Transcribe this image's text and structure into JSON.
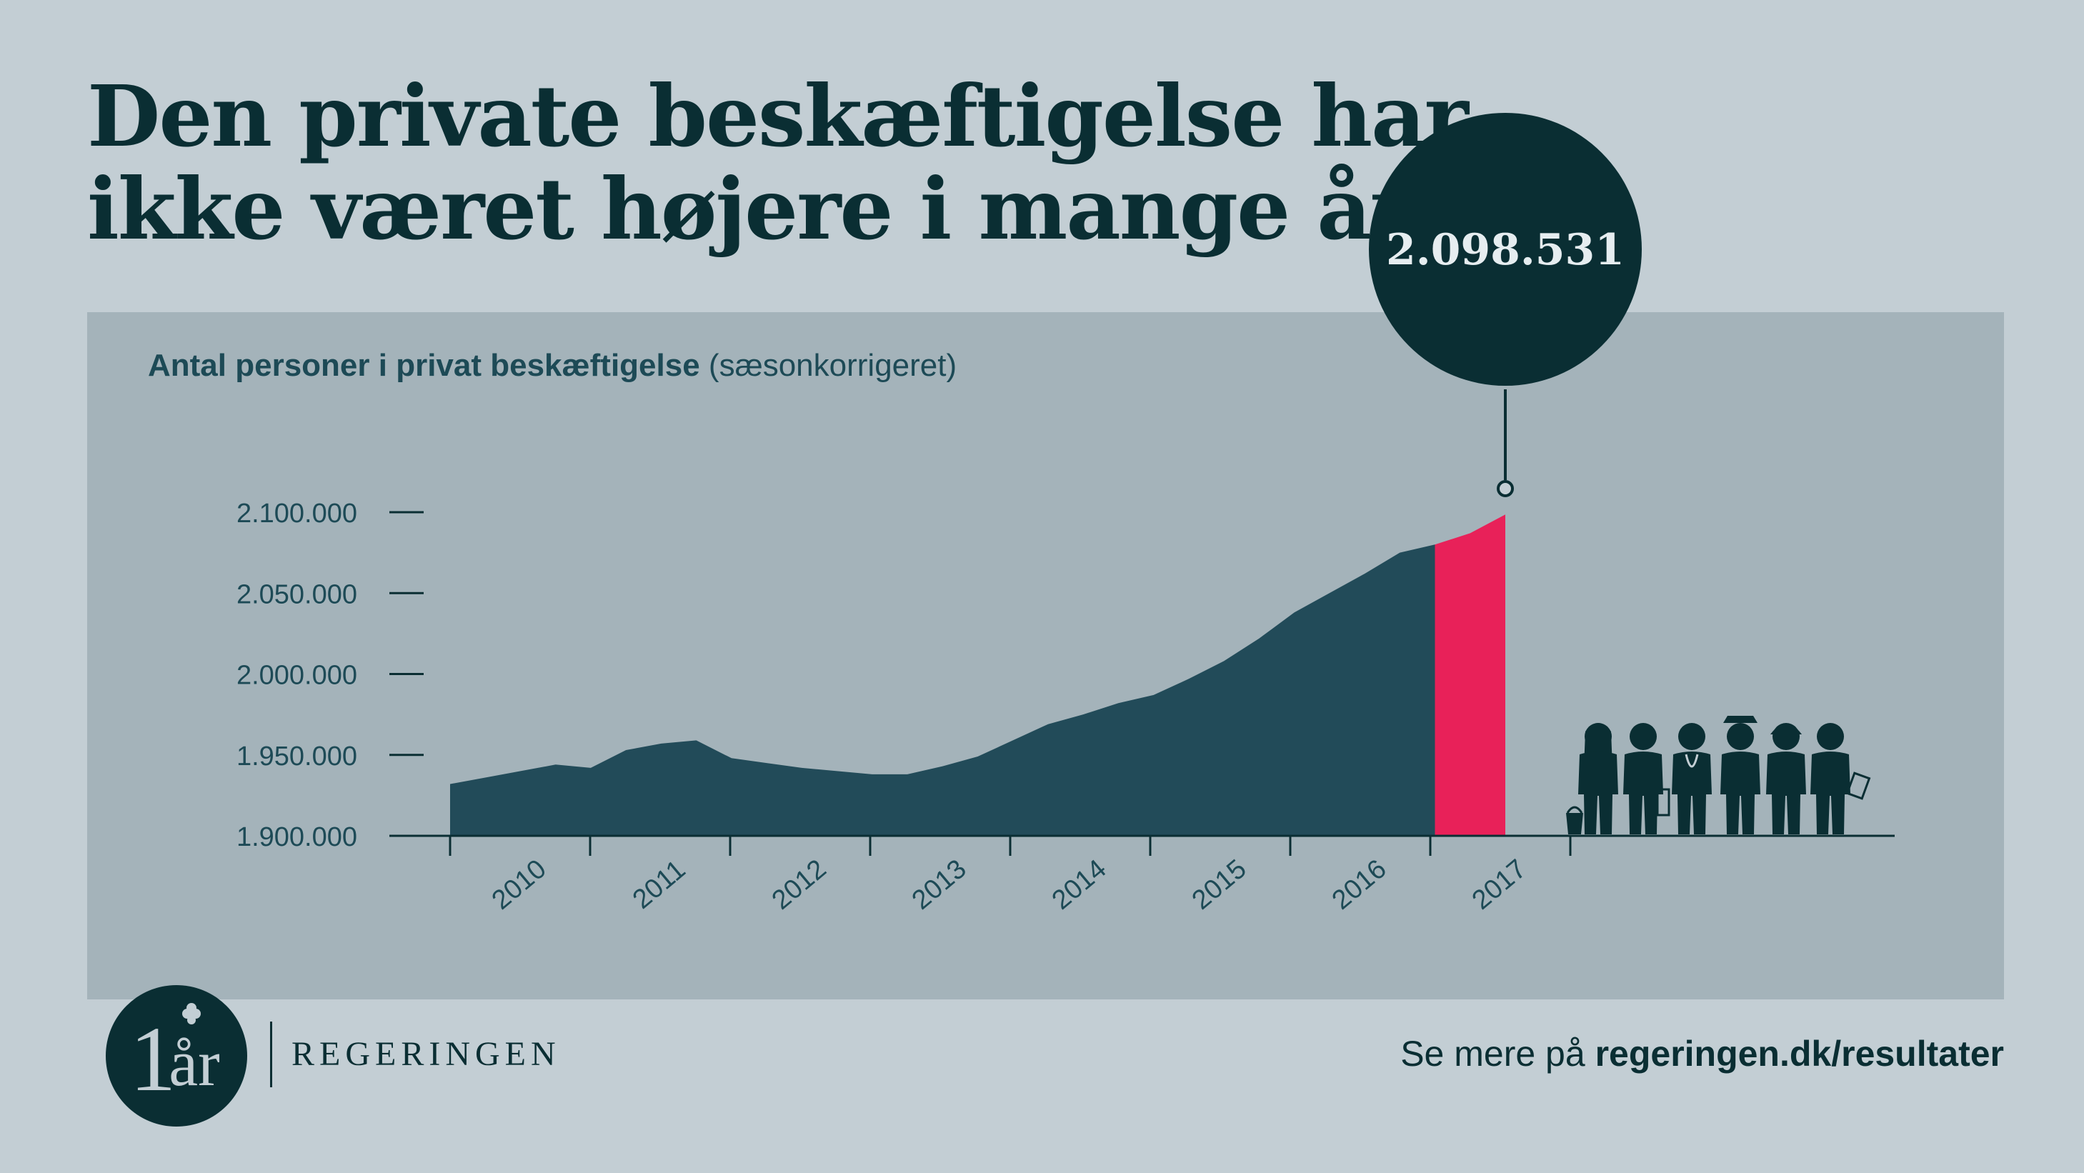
{
  "headline": {
    "line1": "Den private beskæftigelse har",
    "line2": "ikke været højere i mange år"
  },
  "chart_data": {
    "type": "area",
    "title": "Antal personer i privat beskæftigelse",
    "subtitle": "(sæsonkorrigeret)",
    "ylim": [
      1900000,
      2100000
    ],
    "y_ticks": [
      1900000,
      1950000,
      2000000,
      2050000,
      2100000
    ],
    "y_tick_labels": [
      "1.900.000",
      "1.950.000",
      "2.000.000",
      "2.050.000",
      "2.100.000"
    ],
    "x_range": [
      2009.5,
      2017
    ],
    "x_tick_labels": [
      "2010",
      "2011",
      "2012",
      "2013",
      "2014",
      "2015",
      "2016",
      "2017"
    ],
    "grid": false,
    "colors": {
      "history": "#224b59",
      "highlight": "#e82159",
      "axis": "#0a2e33"
    },
    "x": [
      2009.5,
      2009.75,
      2010.0,
      2010.25,
      2010.5,
      2010.75,
      2011.0,
      2011.25,
      2011.5,
      2011.75,
      2012.0,
      2012.25,
      2012.5,
      2012.75,
      2013.0,
      2013.25,
      2013.5,
      2013.75,
      2014.0,
      2014.25,
      2014.5,
      2014.75,
      2015.0,
      2015.25,
      2015.5,
      2015.75,
      2016.0,
      2016.25,
      2016.5,
      2016.75,
      2017.0
    ],
    "values": [
      1932000,
      1936000,
      1940000,
      1944000,
      1942000,
      1953000,
      1957000,
      1959000,
      1948000,
      1945000,
      1942000,
      1940000,
      1938000,
      1938000,
      1943000,
      1949000,
      1959000,
      1969000,
      1975000,
      1982000,
      1987000,
      1997000,
      2008000,
      2022000,
      2038000,
      2050000,
      2062000,
      2075000,
      2080000,
      2087000,
      2098531
    ],
    "highlight_from_x": 2016.5,
    "callout": {
      "x": 2017.0,
      "value": 2098531,
      "label": "2.098.531"
    }
  },
  "illustration": {
    "icon": "workers-silhouettes-icon"
  },
  "footer": {
    "logo_number": "1",
    "logo_text": "år",
    "brand": "REGERINGEN",
    "link_prefix": "Se mere på ",
    "link_bold": "regeringen.dk/resultater"
  }
}
